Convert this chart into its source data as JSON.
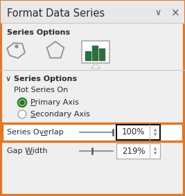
{
  "title": "Format Data Series",
  "bg_color": "#efefef",
  "panel_bg": "#efefef",
  "outer_border_color": "#e07828",
  "outer_border_lw": 3.0,
  "series_options_label": "Series Options",
  "series_options_chevron_color": "#1a8abf",
  "section_label": "Series Options",
  "plot_series_on": "Plot Series On",
  "primary_axis": "Primary Axis",
  "secondary_axis": "Secondary Axis",
  "series_overlap_label": "Series Overlap",
  "series_overlap_value": "100%",
  "gap_width_label": "Gap Width",
  "gap_width_value": "219%",
  "highlight_color": "#e07828",
  "highlight_lw": 2.5,
  "radio_active_color": "#217a21",
  "bar_icon_color": "#2d6e3e",
  "separator_color": "#c8c8c8",
  "text_color": "#2a2a2a",
  "title_bg": "#e8e8e8",
  "white": "#ffffff",
  "gray_border": "#999999",
  "spinner_color": "#888888",
  "slider_color": "#888888",
  "chevron_color": "#555555"
}
